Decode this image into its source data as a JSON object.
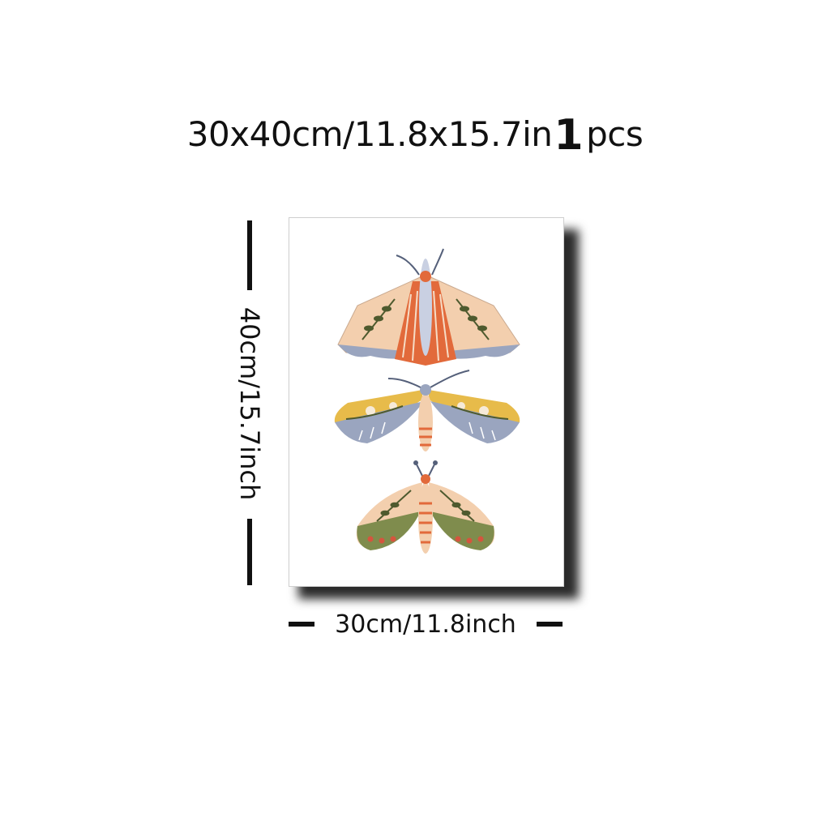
{
  "header": {
    "size_text": "30x40cm/11.8x15.7in",
    "quantity": "1",
    "unit": "pcs"
  },
  "dimensions": {
    "height_label": "40cm/15.7inch",
    "width_label": "30cm/11.8inch"
  },
  "artwork": {
    "subject": "three illustrated moths",
    "colors": {
      "orange": "#e26a3b",
      "peach": "#f3cfae",
      "mustard": "#e7bb4a",
      "leaf": "#4e5a2e",
      "slate": "#9aa5bf",
      "olive": "#7f8c4d",
      "red": "#d5553e"
    }
  }
}
